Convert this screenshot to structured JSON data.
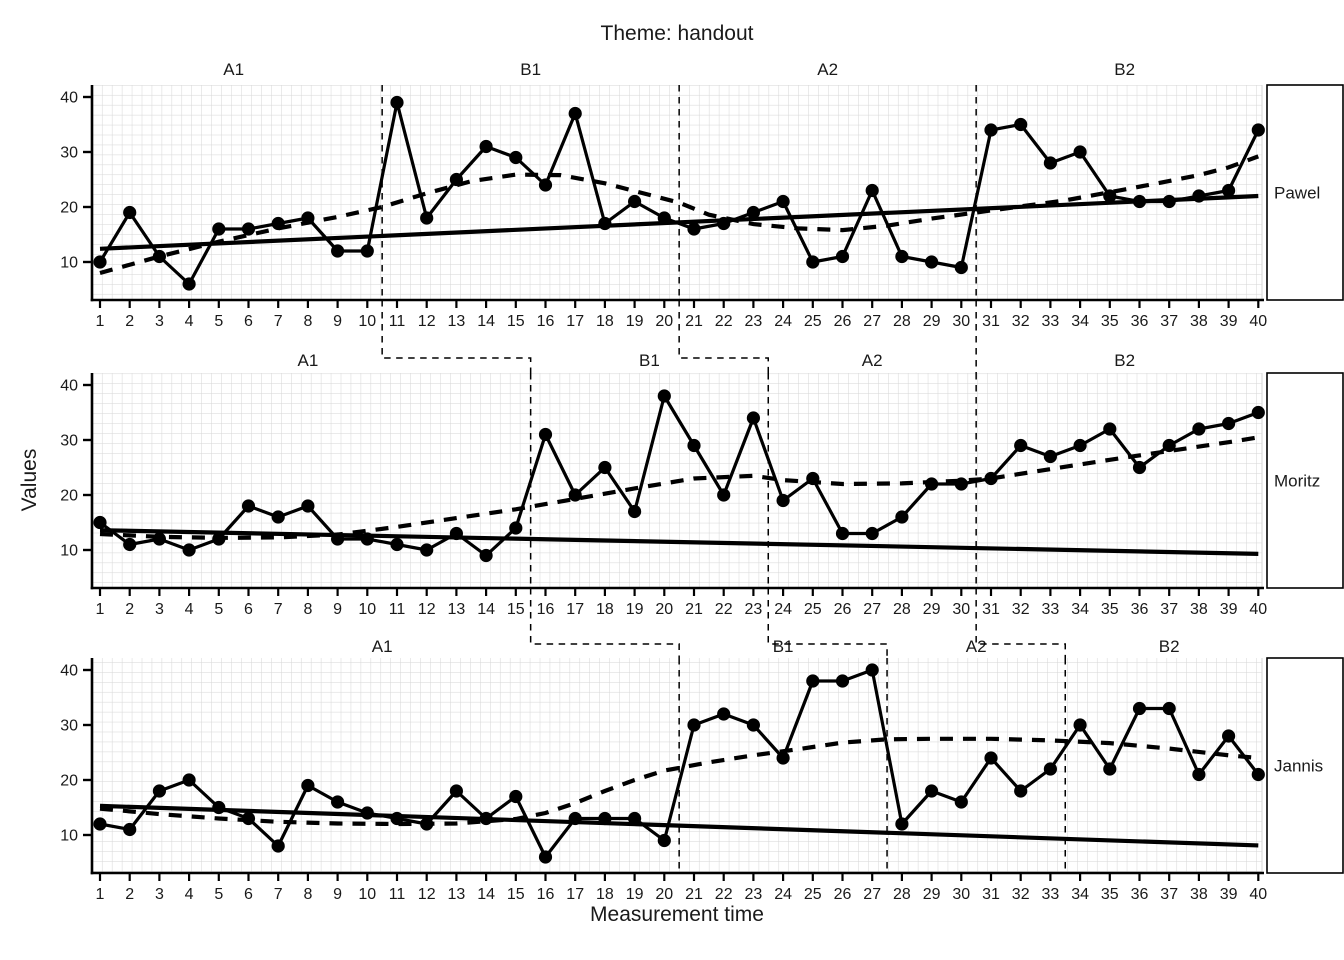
{
  "chart_data": {
    "type": "line",
    "title": "Theme: handout",
    "xlabel": "Measurement time",
    "ylabel": "Values",
    "ylim": [
      3,
      42.5
    ],
    "yticks": [
      10,
      20,
      30,
      40
    ],
    "xticks": [
      1,
      2,
      3,
      4,
      5,
      6,
      7,
      8,
      9,
      10,
      11,
      12,
      13,
      14,
      15,
      16,
      17,
      18,
      19,
      20,
      21,
      22,
      23,
      24,
      25,
      26,
      27,
      28,
      29,
      30,
      31,
      32,
      33,
      34,
      35,
      36,
      37,
      38,
      39,
      40
    ],
    "grid": true,
    "colors": {
      "data": "#000000",
      "grid": "#d6d6d6",
      "background": "#ffffff",
      "text": "#1a1a1a"
    },
    "panels": [
      {
        "name": "Pawel",
        "phases": [
          {
            "label": "A1",
            "from": 1,
            "to": 10
          },
          {
            "label": "B1",
            "from": 11,
            "to": 20
          },
          {
            "label": "A2",
            "from": 21,
            "to": 30
          },
          {
            "label": "B2",
            "from": 31,
            "to": 40
          }
        ],
        "values": [
          10,
          19,
          11,
          6,
          16,
          16,
          17,
          18,
          12,
          12,
          39,
          18,
          25,
          31,
          29,
          24,
          37,
          17,
          21,
          18,
          16,
          17,
          19,
          21,
          10,
          11,
          23,
          11,
          10,
          9,
          34,
          35,
          28,
          30,
          22,
          21,
          21,
          22,
          23,
          34
        ],
        "trend": {
          "x": [
            1,
            40
          ],
          "y": [
            12.4,
            22.0
          ]
        },
        "smoother": {
          "x": [
            1,
            3,
            5,
            7,
            9,
            10.5,
            12,
            13.5,
            15,
            16.5,
            18,
            19.5,
            20.5,
            21.5,
            23,
            24.5,
            26,
            27.5,
            29,
            30.5,
            32,
            33.5,
            35,
            36.5,
            38,
            39,
            40
          ],
          "y": [
            8,
            11,
            13.7,
            16.1,
            18.2,
            20,
            22.5,
            24.7,
            25.9,
            25.8,
            24.3,
            22.2,
            20.8,
            18.6,
            16.9,
            16.1,
            15.8,
            16.6,
            17.9,
            19,
            20.1,
            21.2,
            22.7,
            24.2,
            25.8,
            27.2,
            29.2
          ]
        }
      },
      {
        "name": "Moritz",
        "phases": [
          {
            "label": "A1",
            "from": 1,
            "to": 15
          },
          {
            "label": "B1",
            "from": 16,
            "to": 23
          },
          {
            "label": "A2",
            "from": 24,
            "to": 30
          },
          {
            "label": "B2",
            "from": 31,
            "to": 40
          }
        ],
        "values": [
          15,
          11,
          12,
          10,
          12,
          18,
          16,
          18,
          12,
          12,
          11,
          10,
          13,
          9,
          14,
          31,
          20,
          25,
          17,
          38,
          29,
          20,
          34,
          19,
          23,
          13,
          13,
          16,
          22,
          22,
          23,
          29,
          27,
          29,
          32,
          25,
          29,
          32,
          33,
          35
        ],
        "trend": {
          "x": [
            1,
            40
          ],
          "y": [
            13.6,
            9.3
          ]
        },
        "smoother": {
          "x": [
            1,
            3,
            5,
            7,
            9,
            11,
            13,
            15,
            17,
            19,
            21,
            23,
            24,
            26,
            28,
            30,
            31,
            33,
            35,
            37,
            39,
            40
          ],
          "y": [
            12.9,
            12.4,
            12.2,
            12.3,
            12.8,
            14.2,
            15.8,
            17.4,
            19.3,
            21.2,
            23,
            23.5,
            22.7,
            22,
            22.1,
            22.6,
            23,
            24.7,
            26.4,
            28,
            29.6,
            30.5
          ]
        }
      },
      {
        "name": "Jannis",
        "phases": [
          {
            "label": "A1",
            "from": 1,
            "to": 20
          },
          {
            "label": "B1",
            "from": 21,
            "to": 27
          },
          {
            "label": "A2",
            "from": 28,
            "to": 33
          },
          {
            "label": "B2",
            "from": 34,
            "to": 40
          }
        ],
        "values": [
          12,
          11,
          18,
          20,
          15,
          13,
          8,
          19,
          16,
          14,
          13,
          12,
          18,
          13,
          17,
          6,
          13,
          13,
          13,
          9,
          30,
          32,
          30,
          24,
          38,
          38,
          40,
          12,
          18,
          16,
          24,
          18,
          22,
          30,
          22,
          33,
          33,
          21,
          28,
          21
        ],
        "trend": {
          "x": [
            1,
            40
          ],
          "y": [
            15.3,
            8.1
          ]
        },
        "smoother": {
          "x": [
            1,
            3,
            5,
            7,
            9,
            11,
            13,
            15,
            16,
            17,
            18,
            19,
            20,
            21.5,
            23,
            24.5,
            26,
            27.5,
            29,
            31,
            33,
            35,
            37,
            39,
            40
          ],
          "y": [
            14.8,
            13.8,
            13,
            12.4,
            12.1,
            12,
            12.1,
            12.9,
            14,
            15.8,
            18,
            20,
            21.7,
            23.2,
            24.5,
            25.6,
            26.8,
            27.4,
            27.5,
            27.5,
            27.2,
            26.7,
            25.7,
            24.5,
            24
          ]
        }
      }
    ]
  }
}
